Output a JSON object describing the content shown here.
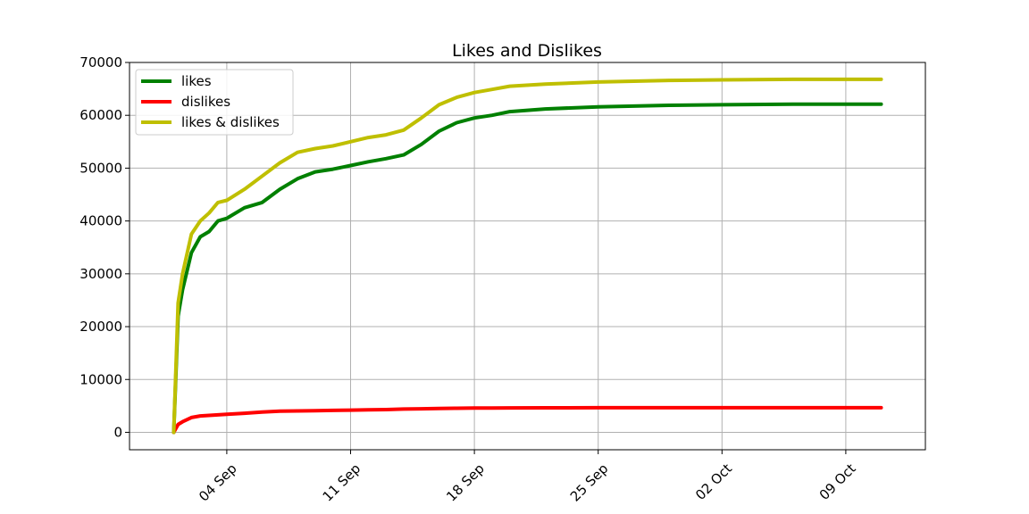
{
  "chart_data": {
    "type": "line",
    "title": "Likes and Dislikes",
    "xlabel": "",
    "ylabel": "",
    "grid": true,
    "legend_position": "top-left",
    "x_type": "date",
    "xlim": [
      "2023-08-29T12:00",
      "2023-10-13T12:00"
    ],
    "ylim": [
      -3300,
      70000
    ],
    "x_ticks": [
      {
        "date": "2023-09-04",
        "label": "04 Sep"
      },
      {
        "date": "2023-09-11",
        "label": "11 Sep"
      },
      {
        "date": "2023-09-18",
        "label": "18 Sep"
      },
      {
        "date": "2023-09-25",
        "label": "25 Sep"
      },
      {
        "date": "2023-10-02",
        "label": "02 Oct"
      },
      {
        "date": "2023-10-09",
        "label": "09 Oct"
      }
    ],
    "y_ticks": [
      0,
      10000,
      20000,
      30000,
      40000,
      50000,
      60000,
      70000
    ],
    "x": [
      "2023-09-01T00:00",
      "2023-09-01T06:00",
      "2023-09-01T12:00",
      "2023-09-02T00:00",
      "2023-09-02T12:00",
      "2023-09-03T00:00",
      "2023-09-03T12:00",
      "2023-09-04T00:00",
      "2023-09-05T00:00",
      "2023-09-06T00:00",
      "2023-09-07T00:00",
      "2023-09-08T00:00",
      "2023-09-09T00:00",
      "2023-09-10T00:00",
      "2023-09-11T00:00",
      "2023-09-12T00:00",
      "2023-09-13T00:00",
      "2023-09-14T00:00",
      "2023-09-15T00:00",
      "2023-09-16T00:00",
      "2023-09-17T00:00",
      "2023-09-18T00:00",
      "2023-09-19T00:00",
      "2023-09-20T00:00",
      "2023-09-22T00:00",
      "2023-09-25T00:00",
      "2023-09-29T00:00",
      "2023-10-02T00:00",
      "2023-10-06T00:00",
      "2023-10-11T00:00"
    ],
    "series": [
      {
        "name": "likes",
        "color": "#008000",
        "values": [
          0,
          22000,
          27000,
          34000,
          37000,
          38000,
          40000,
          40500,
          42500,
          43500,
          46000,
          48000,
          49300,
          49800,
          50500,
          51200,
          51800,
          52500,
          54500,
          57000,
          58600,
          59500,
          60000,
          60700,
          61200,
          61600,
          61900,
          62000,
          62100,
          62100
        ]
      },
      {
        "name": "dislikes",
        "color": "#ff0000",
        "values": [
          0,
          1500,
          2000,
          2800,
          3100,
          3200,
          3300,
          3400,
          3600,
          3850,
          4000,
          4050,
          4100,
          4150,
          4200,
          4250,
          4300,
          4400,
          4450,
          4500,
          4550,
          4580,
          4600,
          4620,
          4640,
          4650,
          4650,
          4650,
          4650,
          4650
        ]
      },
      {
        "name": "likes & dislikes",
        "color": "#bfbf00",
        "values": [
          0,
          24500,
          30000,
          37500,
          40000,
          41500,
          43500,
          43900,
          46000,
          48500,
          51000,
          53000,
          53700,
          54200,
          55000,
          55800,
          56300,
          57200,
          59500,
          62000,
          63400,
          64300,
          64900,
          65500,
          65900,
          66300,
          66600,
          66700,
          66800,
          66800
        ]
      }
    ]
  }
}
